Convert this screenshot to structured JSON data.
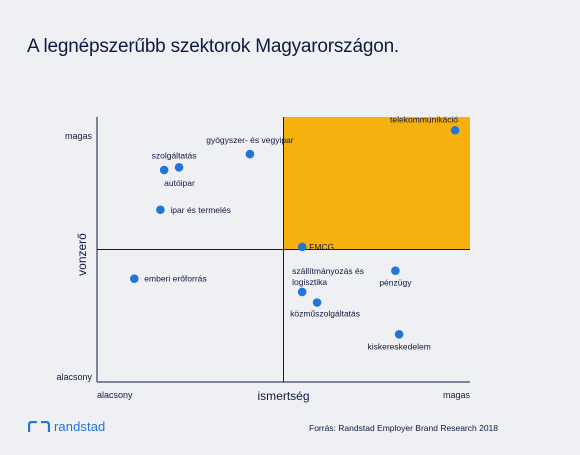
{
  "title": "A legnépszerűbb szektorok Magyarországon.",
  "source": "Forrás: Randstad Employer Brand Research 2018",
  "brand": {
    "name": "randstad",
    "logo_icon": "randstad-logo-icon",
    "color": "#2175d9"
  },
  "colors": {
    "accent_quadrant": "#f7b10e",
    "point": "#2175d9",
    "axis": "#0f1941",
    "background": "#eef0f4"
  },
  "chart_data": {
    "type": "scatter",
    "title": "A legnépszerűbb szektorok Magyarországon.",
    "xlabel": "ismertség",
    "ylabel": "vonzerő",
    "x_tick_labels": {
      "low": "alacsony",
      "high": "magas"
    },
    "y_tick_labels": {
      "low": "alacsony",
      "high": "magas"
    },
    "xlim": [
      0,
      1
    ],
    "ylim": [
      0,
      1
    ],
    "midpoint": {
      "x": 0.5,
      "y": 0.5
    },
    "highlighted_quadrant": "top-right",
    "points": [
      {
        "label": "telekommunikáció",
        "x": 0.96,
        "y": 0.95
      },
      {
        "label": "gyógyszer- és vegyipar",
        "x": 0.41,
        "y": 0.86
      },
      {
        "label": "szolgáltatás",
        "x": 0.22,
        "y": 0.81
      },
      {
        "label": "autóipar",
        "x": 0.18,
        "y": 0.8
      },
      {
        "label": "ipar és termelés",
        "x": 0.17,
        "y": 0.65
      },
      {
        "label": "FMCG",
        "x": 0.55,
        "y": 0.51
      },
      {
        "label": "emberi erőforrás",
        "x": 0.1,
        "y": 0.39
      },
      {
        "label": "pénzügy",
        "x": 0.8,
        "y": 0.42
      },
      {
        "label": "szállítmányozás és logisztika",
        "x": 0.55,
        "y": 0.34
      },
      {
        "label": "közműszolgáltatás",
        "x": 0.59,
        "y": 0.3
      },
      {
        "label": "kiskereskedelem",
        "x": 0.81,
        "y": 0.18
      }
    ]
  }
}
